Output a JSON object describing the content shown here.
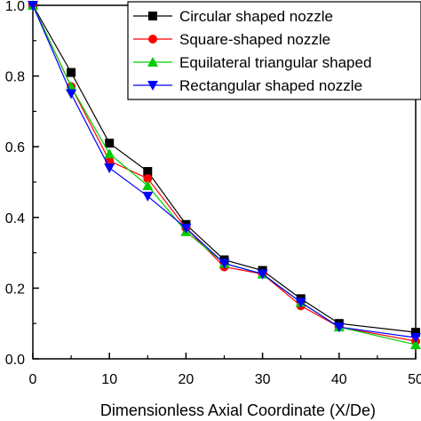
{
  "chart_data": {
    "type": "line",
    "title": "",
    "xlabel": "Dimensionless Axial Coordinate (X/De)",
    "ylabel": "",
    "x": [
      0,
      5,
      10,
      15,
      20,
      25,
      30,
      35,
      40,
      50
    ],
    "xlim": [
      0,
      50
    ],
    "ylim": [
      0,
      1.0
    ],
    "xticks": [
      0,
      10,
      20,
      30,
      40,
      50
    ],
    "xtick_labels": [
      "0",
      "10",
      "20",
      "30",
      "40",
      "50"
    ],
    "yticks": [
      0,
      0.2,
      0.4,
      0.6,
      0.8,
      1.0
    ],
    "ytick_labels": [
      "0.0",
      "0.2",
      "0.4",
      "0.6",
      "0.8",
      "1.0"
    ],
    "grid": false,
    "legend_position": "top-right",
    "series": [
      {
        "name": "Circular shaped nozzle",
        "color": "#000000",
        "marker": "square",
        "values": [
          1.0,
          0.81,
          0.61,
          0.53,
          0.38,
          0.28,
          0.25,
          0.17,
          0.1,
          0.075
        ]
      },
      {
        "name": "Square-shaped nozzle",
        "color": "#ff0000",
        "marker": "circle",
        "values": [
          1.0,
          0.77,
          0.56,
          0.51,
          0.37,
          0.26,
          0.24,
          0.15,
          0.09,
          0.05
        ]
      },
      {
        "name": "Equilateral triangular shaped",
        "color": "#00cc00",
        "marker": "triangle-up",
        "values": [
          1.0,
          0.77,
          0.58,
          0.49,
          0.36,
          0.27,
          0.24,
          0.16,
          0.09,
          0.04
        ]
      },
      {
        "name": "Rectangular shaped nozzle",
        "color": "#0000ff",
        "marker": "triangle-down",
        "values": [
          1.0,
          0.75,
          0.54,
          0.46,
          0.37,
          0.27,
          0.24,
          0.16,
          0.09,
          0.06
        ]
      }
    ]
  }
}
